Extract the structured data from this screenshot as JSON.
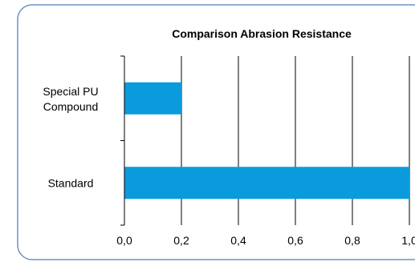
{
  "chart_data": {
    "type": "bar",
    "orientation": "horizontal",
    "title": "Comparison Abrasion Resistance",
    "categories": [
      "Special PU Compound",
      "Standard"
    ],
    "category_lines": [
      [
        "Special PU",
        "Compound"
      ],
      [
        "Standard"
      ]
    ],
    "values": [
      0.2,
      1.0
    ],
    "xlabel": "",
    "ylabel": "",
    "xlim": [
      0,
      1.0
    ],
    "x_ticks": [
      "0,0",
      "0,2",
      "0,4",
      "0,6",
      "0,8",
      "1,0"
    ],
    "grid": "vertical",
    "colors": {
      "bar": "#0a9bdc",
      "frame": "#6f93c4",
      "grid": "#000000"
    }
  }
}
